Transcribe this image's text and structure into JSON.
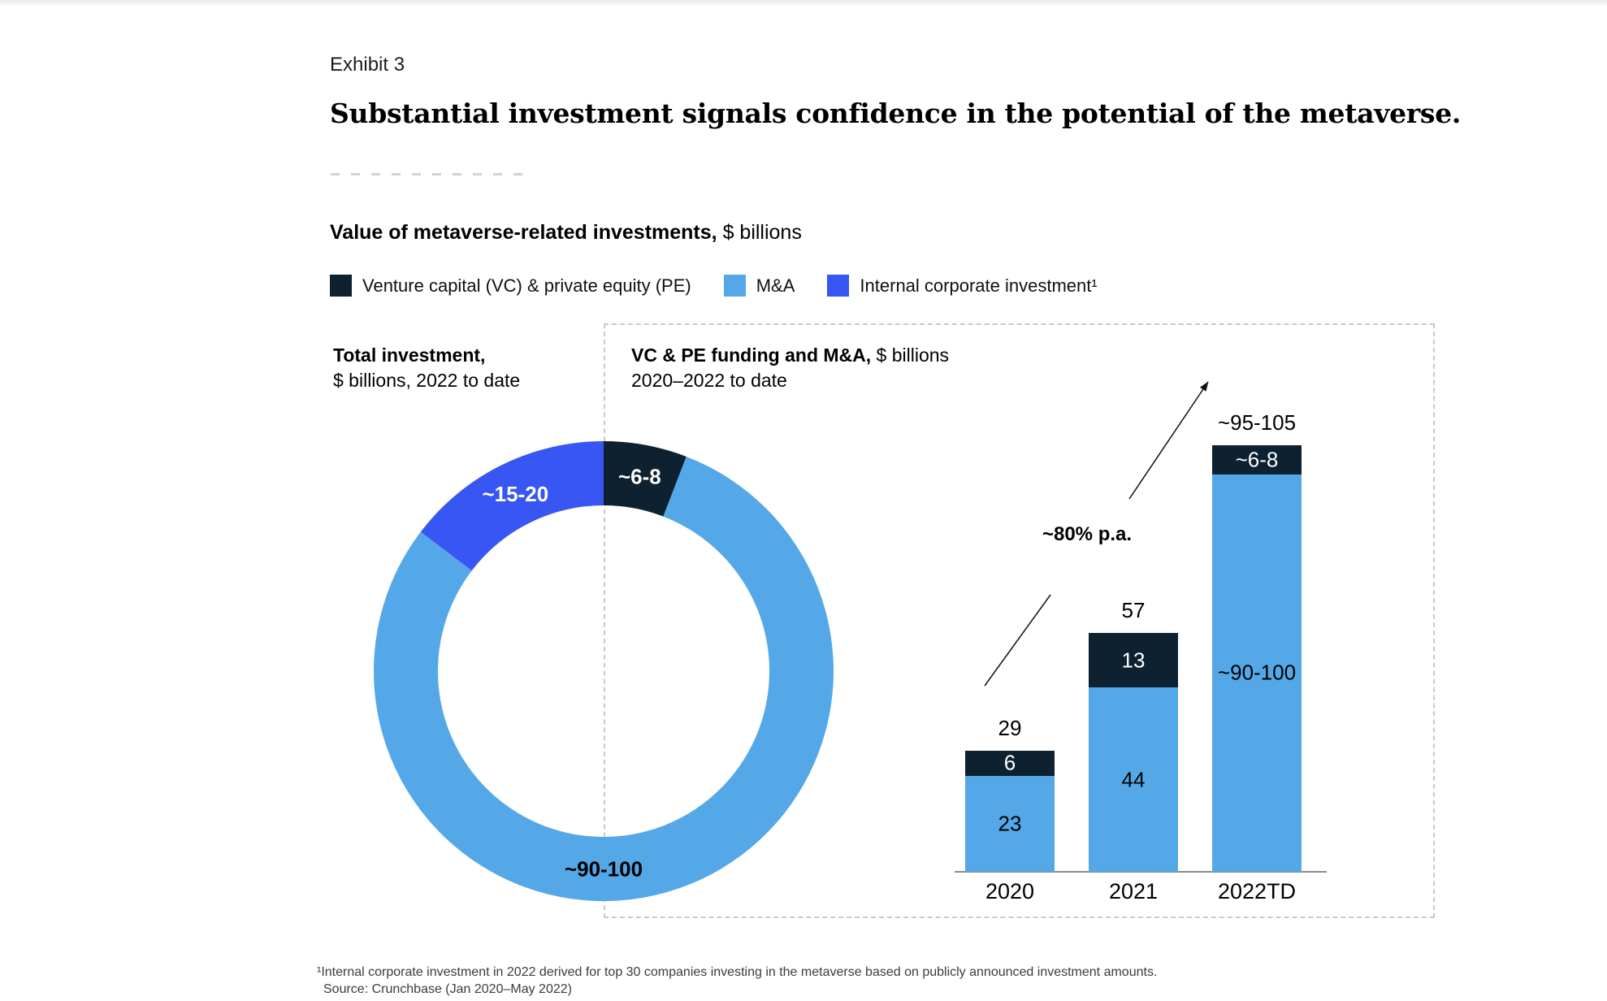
{
  "exhibit": {
    "label": "Exhibit 3",
    "title": "Substantial investment signals confidence in the potential of the metaverse."
  },
  "chart_heading": {
    "bold": "Value of metaverse-related investments,",
    "regular": "$ billions"
  },
  "palette": {
    "navy": "#0e2130",
    "light_blue": "#55a8e8",
    "royal_blue": "#3756f3",
    "axis": "#8a8a8a",
    "panel_border": "#c9c9c9",
    "footnote_text": "#3b3b3b"
  },
  "legend": {
    "items": [
      {
        "label": "Venture capital (VC) & private equity (PE)",
        "color": "navy"
      },
      {
        "label": "M&A",
        "color": "light_blue"
      },
      {
        "label": "Internal corporate investment¹",
        "color": "royal_blue"
      }
    ]
  },
  "chart_data": [
    {
      "type": "pie",
      "variant": "donut",
      "title": "Total investment,",
      "title_line2": "$ billions, 2022 to date",
      "start": "12-oclock",
      "direction": "clockwise",
      "slices": [
        {
          "series": "Venture capital (VC) & private equity (PE)",
          "label": "~6-8",
          "value": 7,
          "color": "navy",
          "label_color": "#ffffff",
          "label_angle_deg": 10.5
        },
        {
          "series": "M&A",
          "label": "~90-100",
          "value": 95,
          "color": "light_blue",
          "label_color": "#000000",
          "label_angle_deg": 180
        },
        {
          "series": "Internal corporate investment",
          "label": "~15-20",
          "value": 17.5,
          "color": "royal_blue",
          "label_color": "#ffffff",
          "label_angle_deg": 333.5
        }
      ]
    },
    {
      "type": "bar",
      "variant": "stacked",
      "title": "VC & PE funding and M&A,",
      "title_regular": "$ billions",
      "title_line2": "2020–2022 to date",
      "categories": [
        "2020",
        "2021",
        "2022TD"
      ],
      "series": [
        {
          "name": "M&A",
          "color": "light_blue",
          "values": [
            23,
            44,
            95
          ],
          "display_labels": [
            "23",
            "44",
            "~90-100"
          ],
          "label_color": "#000000"
        },
        {
          "name": "Venture capital (VC) & private equity (PE)",
          "color": "navy",
          "values": [
            6,
            13,
            7
          ],
          "display_labels": [
            "6",
            "13",
            "~6-8"
          ],
          "label_color": "#ffffff"
        }
      ],
      "totals": [
        "29",
        "57",
        "~95-105"
      ],
      "annotation": "~80% p.a.",
      "ylim": [
        0,
        105
      ],
      "legend_position": "top-of-exhibit",
      "grid": false
    }
  ],
  "footnote": {
    "line1": "¹Internal corporate investment in 2022 derived for top 30 companies investing in the metaverse based on publicly announced investment amounts.",
    "line2": "Source: Crunchbase (Jan 2020–May 2022)"
  }
}
